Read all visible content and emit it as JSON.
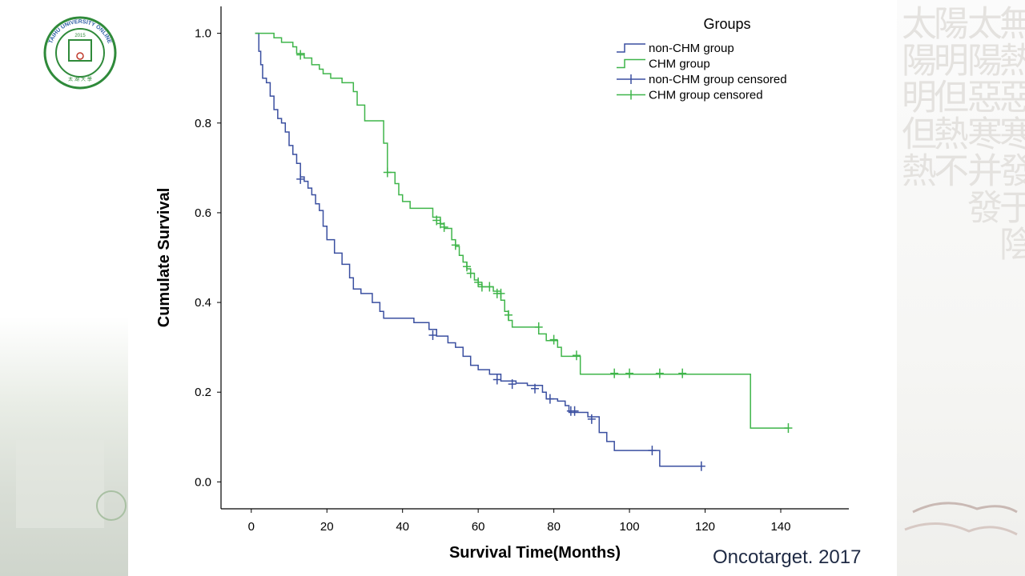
{
  "slide": {
    "citation": "Oncotarget. 2017",
    "logo": {
      "top_text": "TAIHU UNIVERSITY ONLINE",
      "year": "2015",
      "bottom_text": "太 湖 大 學"
    },
    "calligraphy_columns": [
      "太陽明但熱",
      "陽明但熱不",
      "太陽惡寒并發",
      "無熱惡寒發于陰"
    ]
  },
  "colors": {
    "non_chm": "#3a4fa0",
    "chm": "#3fb54a",
    "axis": "#000000"
  },
  "chart_data": {
    "type": "line",
    "title": "",
    "xlabel": "Survival Time(Months)",
    "ylabel": "Cumulate Survival",
    "xlim": [
      -8,
      158
    ],
    "ylim": [
      -0.06,
      1.06
    ],
    "xticks": [
      0,
      20,
      40,
      60,
      80,
      100,
      120,
      140
    ],
    "yticks": [
      "0.0",
      "0.2",
      "0.4",
      "0.6",
      "0.8",
      "1.0"
    ],
    "legend_title": "Groups",
    "legend_position": "top-right",
    "legend": [
      "non-CHM group",
      "CHM group",
      "non-CHM group censored",
      "CHM group censored"
    ],
    "series": [
      {
        "name": "non-CHM group",
        "color_key": "non_chm",
        "step": [
          [
            1,
            1.0
          ],
          [
            2,
            0.96
          ],
          [
            2.5,
            0.93
          ],
          [
            3,
            0.9
          ],
          [
            4,
            0.89
          ],
          [
            5,
            0.86
          ],
          [
            6,
            0.83
          ],
          [
            7,
            0.81
          ],
          [
            8,
            0.8
          ],
          [
            9,
            0.78
          ],
          [
            10,
            0.75
          ],
          [
            11,
            0.73
          ],
          [
            12,
            0.71
          ],
          [
            13,
            0.68
          ],
          [
            14,
            0.67
          ],
          [
            15,
            0.655
          ],
          [
            16,
            0.64
          ],
          [
            17,
            0.62
          ],
          [
            18,
            0.605
          ],
          [
            19,
            0.57
          ],
          [
            20,
            0.54
          ],
          [
            22,
            0.51
          ],
          [
            24,
            0.485
          ],
          [
            26,
            0.455
          ],
          [
            27,
            0.43
          ],
          [
            29,
            0.42
          ],
          [
            32,
            0.4
          ],
          [
            34,
            0.38
          ],
          [
            35,
            0.365
          ],
          [
            43,
            0.355
          ],
          [
            47,
            0.34
          ],
          [
            49,
            0.325
          ],
          [
            52,
            0.31
          ],
          [
            54,
            0.3
          ],
          [
            56,
            0.28
          ],
          [
            58,
            0.26
          ],
          [
            60,
            0.25
          ],
          [
            63,
            0.24
          ],
          [
            66,
            0.225
          ],
          [
            70,
            0.22
          ],
          [
            73,
            0.215
          ],
          [
            77,
            0.2
          ],
          [
            78,
            0.185
          ],
          [
            81,
            0.18
          ],
          [
            83,
            0.17
          ],
          [
            84,
            0.155
          ],
          [
            89,
            0.145
          ],
          [
            92,
            0.11
          ],
          [
            94,
            0.09
          ],
          [
            96,
            0.07
          ],
          [
            103,
            0.07
          ],
          [
            108,
            0.035
          ],
          [
            119,
            0.035
          ]
        ],
        "censored": [
          [
            13,
            0.675
          ],
          [
            48,
            0.327
          ],
          [
            65,
            0.228
          ],
          [
            69,
            0.218
          ],
          [
            75,
            0.208
          ],
          [
            79,
            0.185
          ],
          [
            84.5,
            0.158
          ],
          [
            85.5,
            0.158
          ],
          [
            90,
            0.14
          ],
          [
            106,
            0.07
          ],
          [
            119,
            0.035
          ]
        ]
      },
      {
        "name": "CHM group",
        "color_key": "chm",
        "step": [
          [
            1,
            1.0
          ],
          [
            6,
            0.99
          ],
          [
            8,
            0.98
          ],
          [
            11,
            0.97
          ],
          [
            12,
            0.955
          ],
          [
            14,
            0.945
          ],
          [
            16,
            0.93
          ],
          [
            18,
            0.92
          ],
          [
            19,
            0.91
          ],
          [
            21,
            0.9
          ],
          [
            24,
            0.89
          ],
          [
            27,
            0.87
          ],
          [
            28,
            0.84
          ],
          [
            30,
            0.805
          ],
          [
            35,
            0.755
          ],
          [
            36,
            0.69
          ],
          [
            38,
            0.665
          ],
          [
            39,
            0.64
          ],
          [
            40,
            0.625
          ],
          [
            42,
            0.61
          ],
          [
            48,
            0.59
          ],
          [
            50,
            0.575
          ],
          [
            51,
            0.565
          ],
          [
            53,
            0.54
          ],
          [
            54,
            0.525
          ],
          [
            55,
            0.505
          ],
          [
            56,
            0.49
          ],
          [
            57,
            0.475
          ],
          [
            58,
            0.465
          ],
          [
            59,
            0.45
          ],
          [
            60,
            0.44
          ],
          [
            61,
            0.435
          ],
          [
            64,
            0.425
          ],
          [
            66,
            0.405
          ],
          [
            67,
            0.38
          ],
          [
            68,
            0.36
          ],
          [
            69,
            0.345
          ],
          [
            76,
            0.33
          ],
          [
            78,
            0.315
          ],
          [
            81,
            0.3
          ],
          [
            82,
            0.28
          ],
          [
            87,
            0.24
          ],
          [
            132,
            0.12
          ],
          [
            142,
            0.12
          ]
        ],
        "censored": [
          [
            13,
            0.952
          ],
          [
            36,
            0.69
          ],
          [
            49,
            0.583
          ],
          [
            50,
            0.576
          ],
          [
            51,
            0.568
          ],
          [
            54,
            0.528
          ],
          [
            57,
            0.48
          ],
          [
            58,
            0.465
          ],
          [
            60,
            0.445
          ],
          [
            61,
            0.435
          ],
          [
            63,
            0.435
          ],
          [
            65,
            0.42
          ],
          [
            66,
            0.42
          ],
          [
            68,
            0.372
          ],
          [
            76,
            0.345
          ],
          [
            80,
            0.317
          ],
          [
            86,
            0.282
          ],
          [
            96,
            0.242
          ],
          [
            100,
            0.242
          ],
          [
            108,
            0.242
          ],
          [
            114,
            0.242
          ],
          [
            142,
            0.12
          ]
        ]
      }
    ]
  }
}
